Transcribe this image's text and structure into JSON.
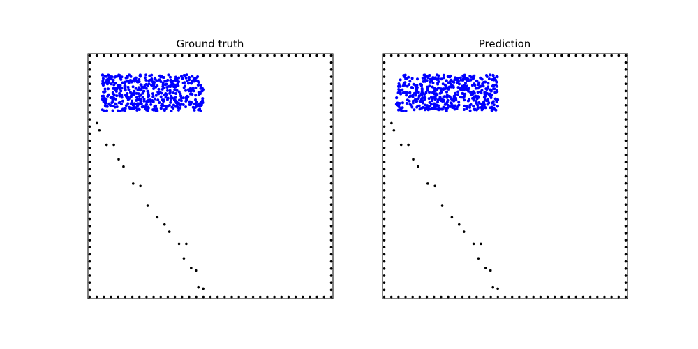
{
  "chart_data": [
    {
      "type": "scatter",
      "title": "Ground truth",
      "xlabel": "",
      "ylabel": "",
      "xlim": [
        0,
        1
      ],
      "ylim": [
        0,
        1
      ],
      "grid": false,
      "ticks": false,
      "border_particles": {
        "color": "#000000",
        "count_per_side": 35
      },
      "wall_particles": {
        "color": "#000000",
        "points": [
          [
            0.03,
            0.72
          ],
          [
            0.04,
            0.69
          ],
          [
            0.07,
            0.63
          ],
          [
            0.1,
            0.63
          ],
          [
            0.12,
            0.57
          ],
          [
            0.14,
            0.54
          ],
          [
            0.18,
            0.47
          ],
          [
            0.21,
            0.46
          ],
          [
            0.24,
            0.38
          ],
          [
            0.28,
            0.33
          ],
          [
            0.31,
            0.3
          ],
          [
            0.33,
            0.27
          ],
          [
            0.37,
            0.22
          ],
          [
            0.4,
            0.22
          ],
          [
            0.39,
            0.16
          ],
          [
            0.42,
            0.12
          ],
          [
            0.44,
            0.11
          ],
          [
            0.45,
            0.04
          ],
          [
            0.47,
            0.035
          ]
        ]
      },
      "fluid_particles": {
        "color": "#0000ff",
        "region": {
          "x": [
            0.05,
            0.47
          ],
          "y": [
            0.77,
            0.92
          ]
        },
        "count": 520,
        "seed": 7
      }
    },
    {
      "type": "scatter",
      "title": "Prediction",
      "xlabel": "",
      "ylabel": "",
      "xlim": [
        0,
        1
      ],
      "ylim": [
        0,
        1
      ],
      "grid": false,
      "ticks": false,
      "border_particles": {
        "color": "#000000",
        "count_per_side": 35
      },
      "wall_particles": {
        "color": "#000000",
        "points": [
          [
            0.03,
            0.72
          ],
          [
            0.04,
            0.69
          ],
          [
            0.07,
            0.63
          ],
          [
            0.1,
            0.63
          ],
          [
            0.12,
            0.57
          ],
          [
            0.14,
            0.54
          ],
          [
            0.18,
            0.47
          ],
          [
            0.21,
            0.46
          ],
          [
            0.24,
            0.38
          ],
          [
            0.28,
            0.33
          ],
          [
            0.31,
            0.3
          ],
          [
            0.33,
            0.27
          ],
          [
            0.37,
            0.22
          ],
          [
            0.4,
            0.22
          ],
          [
            0.39,
            0.16
          ],
          [
            0.42,
            0.12
          ],
          [
            0.44,
            0.11
          ],
          [
            0.45,
            0.04
          ],
          [
            0.47,
            0.035
          ]
        ]
      },
      "fluid_particles": {
        "color": "#0000ff",
        "region": {
          "x": [
            0.05,
            0.47
          ],
          "y": [
            0.77,
            0.92
          ]
        },
        "count": 520,
        "seed": 11
      }
    }
  ]
}
